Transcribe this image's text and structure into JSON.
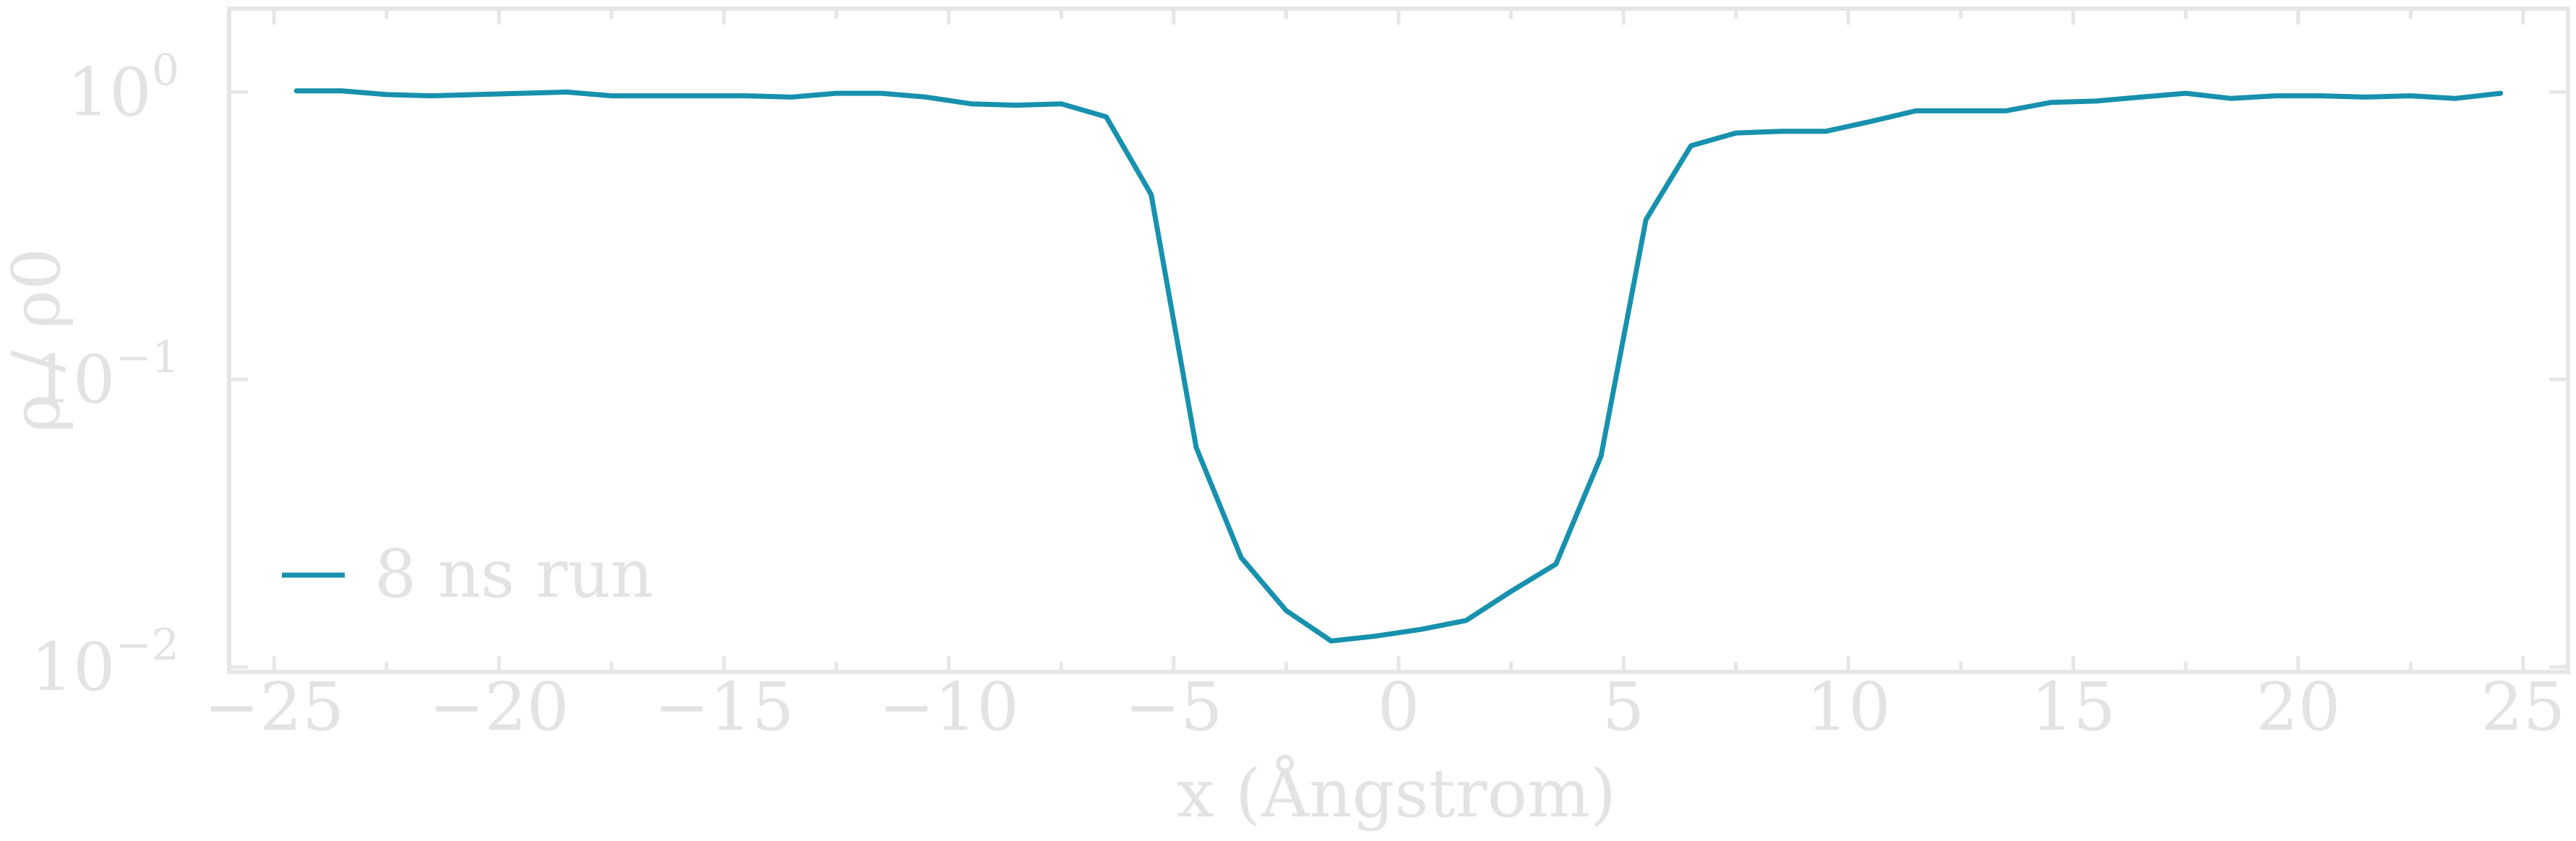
{
  "chart_data": {
    "type": "line",
    "title": "",
    "xlabel": "x (Ångstrom)",
    "ylabel": "ρ / ρ0",
    "yscale": "log",
    "xlim": [
      -26,
      26
    ],
    "ylim": [
      0.0096,
      1.95
    ],
    "grid": false,
    "legend_position": "bottom-left",
    "colors": {
      "series": "#1791ad",
      "axis": "#e6e6e6",
      "text": "#e3e3e3"
    },
    "x_ticks": [
      {
        "value": -25,
        "label": "−25"
      },
      {
        "value": -20,
        "label": "−20"
      },
      {
        "value": -15,
        "label": "−15"
      },
      {
        "value": -10,
        "label": "−10"
      },
      {
        "value": -5,
        "label": "−5"
      },
      {
        "value": 0,
        "label": "0"
      },
      {
        "value": 5,
        "label": "5"
      },
      {
        "value": 10,
        "label": "10"
      },
      {
        "value": 15,
        "label": "15"
      },
      {
        "value": 20,
        "label": "20"
      },
      {
        "value": 25,
        "label": "25"
      }
    ],
    "y_ticks": [
      {
        "value": 1,
        "base": "10",
        "exp": "0"
      },
      {
        "value": 0.1,
        "base": "10",
        "exp": "−1"
      },
      {
        "value": 0.01,
        "base": "10",
        "exp": "−2"
      }
    ],
    "series": [
      {
        "name": "8 ns run",
        "x": [
          -24.5,
          -23.5,
          -22.5,
          -21.5,
          -20.5,
          -19.5,
          -18.5,
          -17.5,
          -16.5,
          -15.5,
          -14.5,
          -13.5,
          -12.5,
          -11.5,
          -10.5,
          -9.5,
          -8.5,
          -7.5,
          -6.5,
          -5.5,
          -4.5,
          -3.5,
          -2.5,
          -1.5,
          -0.5,
          0.5,
          1.5,
          2.5,
          3.5,
          4.5,
          5.5,
          6.5,
          7.5,
          8.5,
          9.5,
          10.5,
          11.5,
          12.5,
          13.5,
          14.5,
          15.5,
          16.5,
          17.5,
          18.5,
          19.5,
          20.5,
          21.5,
          22.5,
          23.5,
          24.5
        ],
        "y": [
          1.01,
          1.01,
          0.98,
          0.97,
          0.98,
          0.99,
          1.0,
          0.97,
          0.97,
          0.97,
          0.97,
          0.96,
          0.99,
          0.99,
          0.96,
          0.91,
          0.9,
          0.91,
          0.82,
          0.44,
          0.058,
          0.024,
          0.0157,
          0.0123,
          0.0128,
          0.0135,
          0.0145,
          0.0183,
          0.0228,
          0.054,
          0.36,
          0.65,
          0.72,
          0.73,
          0.73,
          0.79,
          0.86,
          0.86,
          0.86,
          0.92,
          0.93,
          0.96,
          0.99,
          0.95,
          0.97,
          0.97,
          0.96,
          0.97,
          0.95,
          0.99
        ]
      }
    ]
  }
}
